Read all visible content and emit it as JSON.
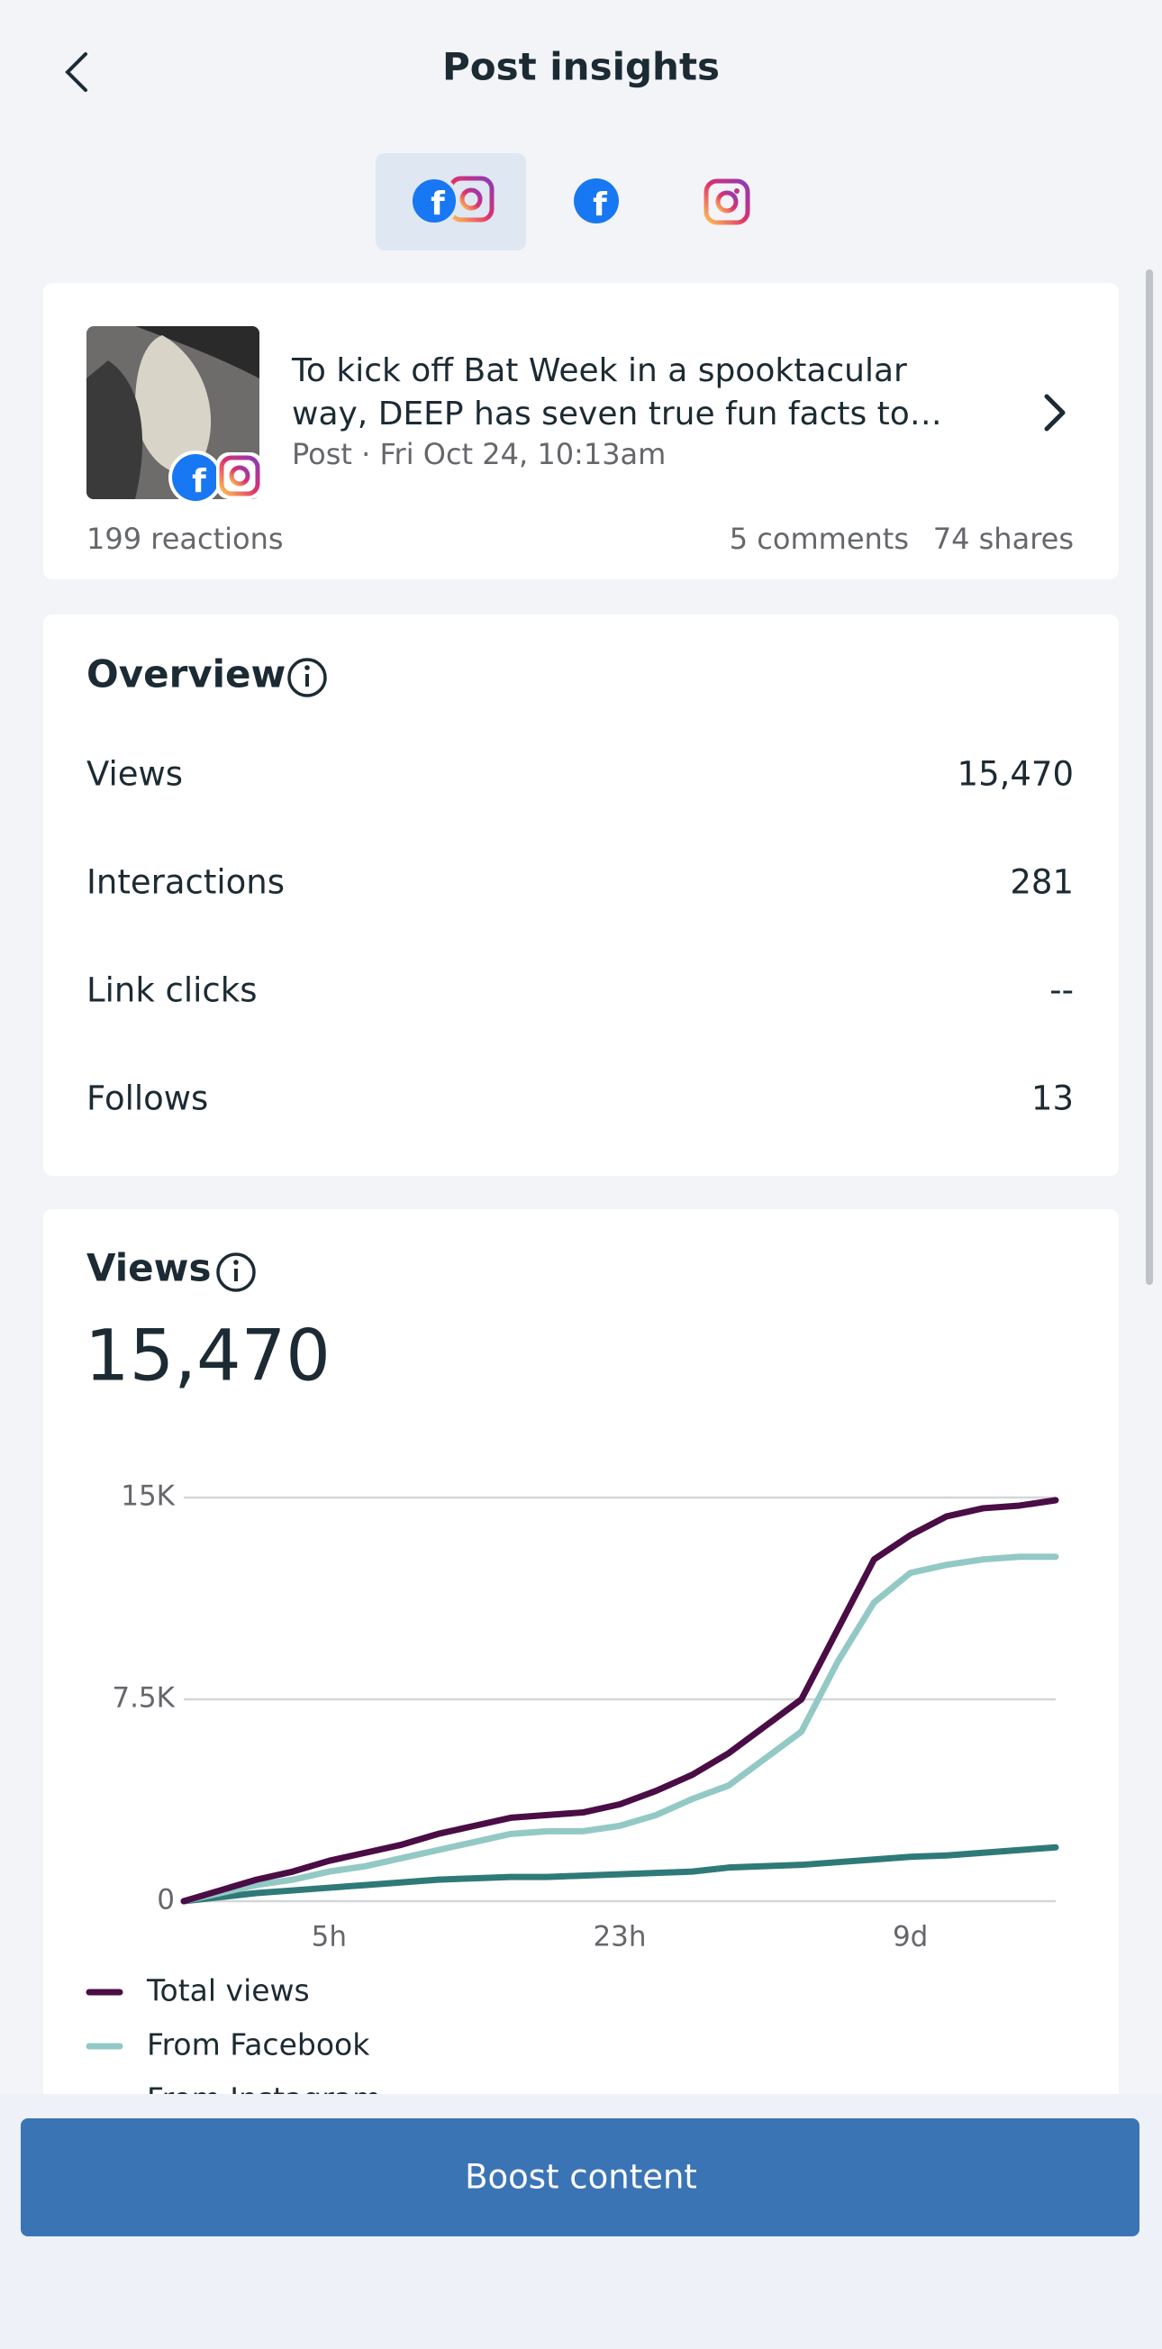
{
  "header": {
    "title": "Post insights"
  },
  "post": {
    "lines": [
      "To kick off Bat Week in a spooktacular",
      "way, DEEP has seven true fun facts to…"
    ],
    "meta": "Post · Fri Oct 24, 10:13am",
    "reactions": "199 reactions",
    "comments": "5 comments",
    "shares": "74 shares"
  },
  "overview": {
    "title": "Overview",
    "rows": [
      {
        "label": "Views",
        "value": "15,470"
      },
      {
        "label": "Interactions",
        "value": "281"
      },
      {
        "label": "Link clicks",
        "value": "--"
      },
      {
        "label": "Follows",
        "value": "13"
      }
    ]
  },
  "views": {
    "title": "Views",
    "total": "15,470"
  },
  "chart_data": {
    "type": "line",
    "categories": [
      null,
      null,
      null,
      null,
      "5h",
      null,
      null,
      null,
      null,
      null,
      null,
      null,
      "23h",
      null,
      null,
      null,
      null,
      null,
      null,
      null,
      "9d",
      null,
      null,
      null,
      null
    ],
    "ylim": [
      0,
      15000
    ],
    "yticks": [
      0,
      {
        "value": 7500,
        "label": "7.5K"
      },
      {
        "value": 15000,
        "label": "15K"
      }
    ],
    "grid": true,
    "series": [
      {
        "name": "Total views",
        "color": "#4a0d45",
        "values": [
          0,
          400,
          800,
          1100,
          1500,
          1800,
          2100,
          2500,
          2800,
          3100,
          3200,
          3300,
          3600,
          4100,
          4700,
          5500,
          6500,
          7500,
          10100,
          12700,
          13600,
          14300,
          14600,
          14700,
          14900
        ]
      },
      {
        "name": "From Facebook",
        "color": "#92c9c4",
        "values": [
          0,
          300,
          600,
          800,
          1100,
          1300,
          1600,
          1900,
          2200,
          2500,
          2600,
          2600,
          2800,
          3200,
          3800,
          4300,
          5300,
          6300,
          8900,
          11100,
          12200,
          12500,
          12700,
          12800,
          12800
        ]
      },
      {
        "name": "From Instagram",
        "color": "#2f7a78",
        "values": [
          0,
          150,
          300,
          400,
          500,
          600,
          700,
          800,
          850,
          900,
          900,
          950,
          1000,
          1050,
          1100,
          1250,
          1300,
          1350,
          1450,
          1550,
          1650,
          1700,
          1800,
          1900,
          2000
        ]
      }
    ]
  },
  "button": {
    "label": "Boost content"
  }
}
